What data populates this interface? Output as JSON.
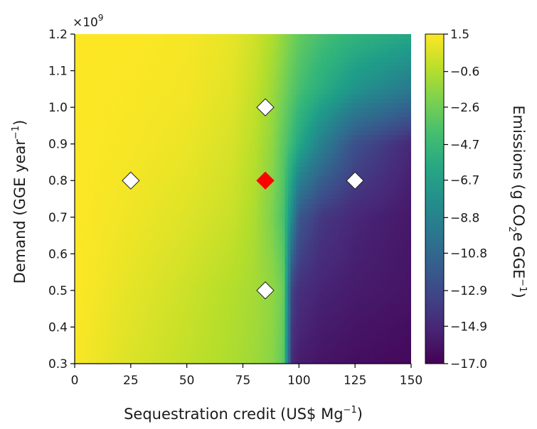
{
  "chart_data": {
    "type": "heatmap",
    "title": "",
    "xlabel": "Sequestration credit (US$ Mg",
    "xlabel_sup": "−1",
    "xlabel_end": ")",
    "ylabel": "Demand (GGE year",
    "ylabel_sup": "−1",
    "ylabel_end": ")",
    "y_multiplier_base": "×10",
    "y_multiplier_exp": "9",
    "xlim": [
      0,
      150
    ],
    "ylim": [
      0.3,
      1.2
    ],
    "x_ticks": [
      0,
      25,
      50,
      75,
      100,
      125,
      150
    ],
    "x_tick_labels": [
      "0",
      "25",
      "50",
      "75",
      "100",
      "125",
      "150"
    ],
    "y_ticks": [
      0.3,
      0.4,
      0.5,
      0.6,
      0.7,
      0.8,
      0.9,
      1.0,
      1.1,
      1.2
    ],
    "y_tick_labels": [
      "0.3",
      "0.4",
      "0.5",
      "0.6",
      "0.7",
      "0.8",
      "0.9",
      "1.0",
      "1.1",
      "1.2"
    ],
    "colorbar": {
      "label_prefix": "Emissions (g CO",
      "label_sub": "2",
      "label_mid": "e GGE",
      "label_sup": "−1",
      "label_end": ")",
      "min": -17.0,
      "max": 1.5,
      "ticks": [
        1.5,
        -0.6,
        -2.6,
        -4.7,
        -6.7,
        -8.8,
        -10.8,
        -12.9,
        -14.9,
        -17.0
      ],
      "tick_labels": [
        "1.5",
        "−0.6",
        "−2.6",
        "−4.7",
        "−6.7",
        "−8.8",
        "−10.8",
        "−12.9",
        "−14.9",
        "−17.0"
      ],
      "colormap": "viridis"
    },
    "approx_surface": {
      "x_points": [
        0,
        25,
        50,
        70,
        80,
        88,
        93,
        97,
        100,
        110,
        125,
        150
      ],
      "rows": [
        {
          "y": 0.3,
          "values": [
            1.4,
            0.5,
            -0.2,
            -0.8,
            -1.2,
            -1.8,
            -3.0,
            -15.0,
            -15.5,
            -16.0,
            -16.3,
            -16.6
          ]
        },
        {
          "y": 0.5,
          "values": [
            1.5,
            0.8,
            0.1,
            -0.6,
            -1.0,
            -1.6,
            -2.6,
            -13.5,
            -14.5,
            -15.2,
            -15.6,
            -16.0
          ]
        },
        {
          "y": 0.7,
          "values": [
            1.5,
            1.1,
            0.6,
            0.0,
            -0.8,
            -2.2,
            -3.8,
            -8.5,
            -12.0,
            -14.0,
            -15.0,
            -15.8
          ]
        },
        {
          "y": 0.9,
          "values": [
            1.5,
            1.3,
            1.0,
            0.4,
            -0.4,
            -1.6,
            -3.2,
            -4.6,
            -6.0,
            -9.0,
            -12.5,
            -15.0
          ]
        },
        {
          "y": 1.05,
          "values": [
            1.5,
            1.4,
            1.2,
            0.7,
            -0.1,
            -1.2,
            -2.3,
            -3.3,
            -4.0,
            -5.5,
            -7.5,
            -9.5
          ]
        },
        {
          "y": 1.2,
          "values": [
            1.5,
            1.5,
            1.3,
            0.9,
            0.2,
            -0.7,
            -1.6,
            -2.4,
            -3.0,
            -4.0,
            -5.0,
            -6.0
          ]
        }
      ]
    },
    "markers": [
      {
        "x": 25,
        "y": 0.8,
        "color": "#ffffff"
      },
      {
        "x": 85,
        "y": 1.0,
        "color": "#ffffff"
      },
      {
        "x": 85,
        "y": 0.8,
        "color": "#ff0000"
      },
      {
        "x": 85,
        "y": 0.5,
        "color": "#ffffff"
      },
      {
        "x": 125,
        "y": 0.8,
        "color": "#ffffff"
      }
    ]
  }
}
